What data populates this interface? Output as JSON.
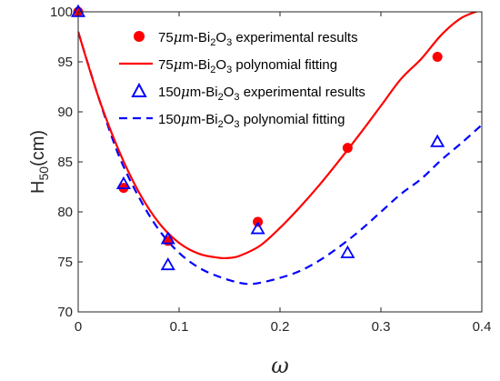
{
  "chart_data": {
    "type": "scatter",
    "xlabel": "ω",
    "ylabel": "H50(cm)",
    "ylabel_parts": {
      "base": "H",
      "sub": "50",
      "rest": "(cm)"
    },
    "xlim": [
      0,
      0.4
    ],
    "ylim": [
      70,
      100
    ],
    "x_ticks": [
      0,
      0.1,
      0.2,
      0.3,
      0.4
    ],
    "x_tick_labels": [
      "0",
      "0.1",
      "0.2",
      "0.3",
      "0.4"
    ],
    "y_ticks": [
      70,
      75,
      80,
      85,
      90,
      95,
      100
    ],
    "y_tick_labels": [
      "70",
      "75",
      "80",
      "85",
      "90",
      "95",
      "100"
    ],
    "grid": false,
    "legend_position": "top-right",
    "series": [
      {
        "name": "75μm-Bi2O3 experimental results",
        "name_parts": {
          "a": "75",
          "b": "μ",
          "c": "m-Bi",
          "d": "2",
          "e": "O",
          "f": "3",
          "g": " experimental results"
        },
        "kind": "markers",
        "marker": "circle",
        "color": "#ff0000",
        "x": [
          0,
          0.045,
          0.089,
          0.178,
          0.267,
          0.356
        ],
        "y": [
          100,
          82.4,
          77.1,
          79.0,
          86.4,
          95.5
        ]
      },
      {
        "name": "75μm-Bi2O3 polynomial fitting",
        "name_parts": {
          "a": "75",
          "b": "μ",
          "c": "m-Bi",
          "d": "2",
          "e": "O",
          "f": "3",
          "g": " polynomial fitting"
        },
        "kind": "line",
        "style": "solid",
        "color": "#ff0000",
        "x": [
          0,
          0.02,
          0.04,
          0.06,
          0.08,
          0.1,
          0.12,
          0.14,
          0.15,
          0.16,
          0.18,
          0.2,
          0.22,
          0.24,
          0.26,
          0.28,
          0.3,
          0.32,
          0.34,
          0.36,
          0.38,
          0.4
        ],
        "y": [
          98.0,
          91.5,
          86.2,
          82.0,
          78.9,
          76.9,
          75.8,
          75.4,
          75.4,
          75.6,
          76.6,
          78.4,
          80.5,
          82.8,
          85.3,
          87.9,
          90.6,
          93.3,
          95.3,
          97.7,
          99.4,
          100.2
        ]
      },
      {
        "name": "150μm-Bi2O3 experimental results",
        "name_parts": {
          "a": "150",
          "b": "μ",
          "c": "m-Bi",
          "d": "2",
          "e": "O",
          "f": "3",
          "g": " experimental results"
        },
        "kind": "markers",
        "marker": "triangle",
        "color": "#0000ff",
        "x": [
          0,
          0.045,
          0.089,
          0.089,
          0.178,
          0.267,
          0.356
        ],
        "y": [
          100,
          82.8,
          77.3,
          74.7,
          78.3,
          75.9,
          87.0
        ]
      },
      {
        "name": "150μm-Bi2O3 polynomial fitting",
        "name_parts": {
          "a": "150",
          "b": "μ",
          "c": "m-Bi",
          "d": "2",
          "e": "O",
          "f": "3",
          "g": " polynomial fitting"
        },
        "kind": "line",
        "style": "dashed",
        "color": "#0000ff",
        "x": [
          0,
          0.02,
          0.04,
          0.06,
          0.08,
          0.1,
          0.12,
          0.14,
          0.16,
          0.17,
          0.18,
          0.2,
          0.22,
          0.24,
          0.26,
          0.28,
          0.3,
          0.32,
          0.34,
          0.36,
          0.38,
          0.4
        ],
        "y": [
          98.0,
          91.5,
          85.7,
          81.5,
          78.2,
          75.9,
          74.4,
          73.5,
          72.9,
          72.8,
          72.9,
          73.4,
          74.1,
          75.2,
          76.6,
          78.2,
          80.0,
          81.8,
          83.3,
          85.2,
          86.9,
          88.7
        ]
      }
    ]
  }
}
